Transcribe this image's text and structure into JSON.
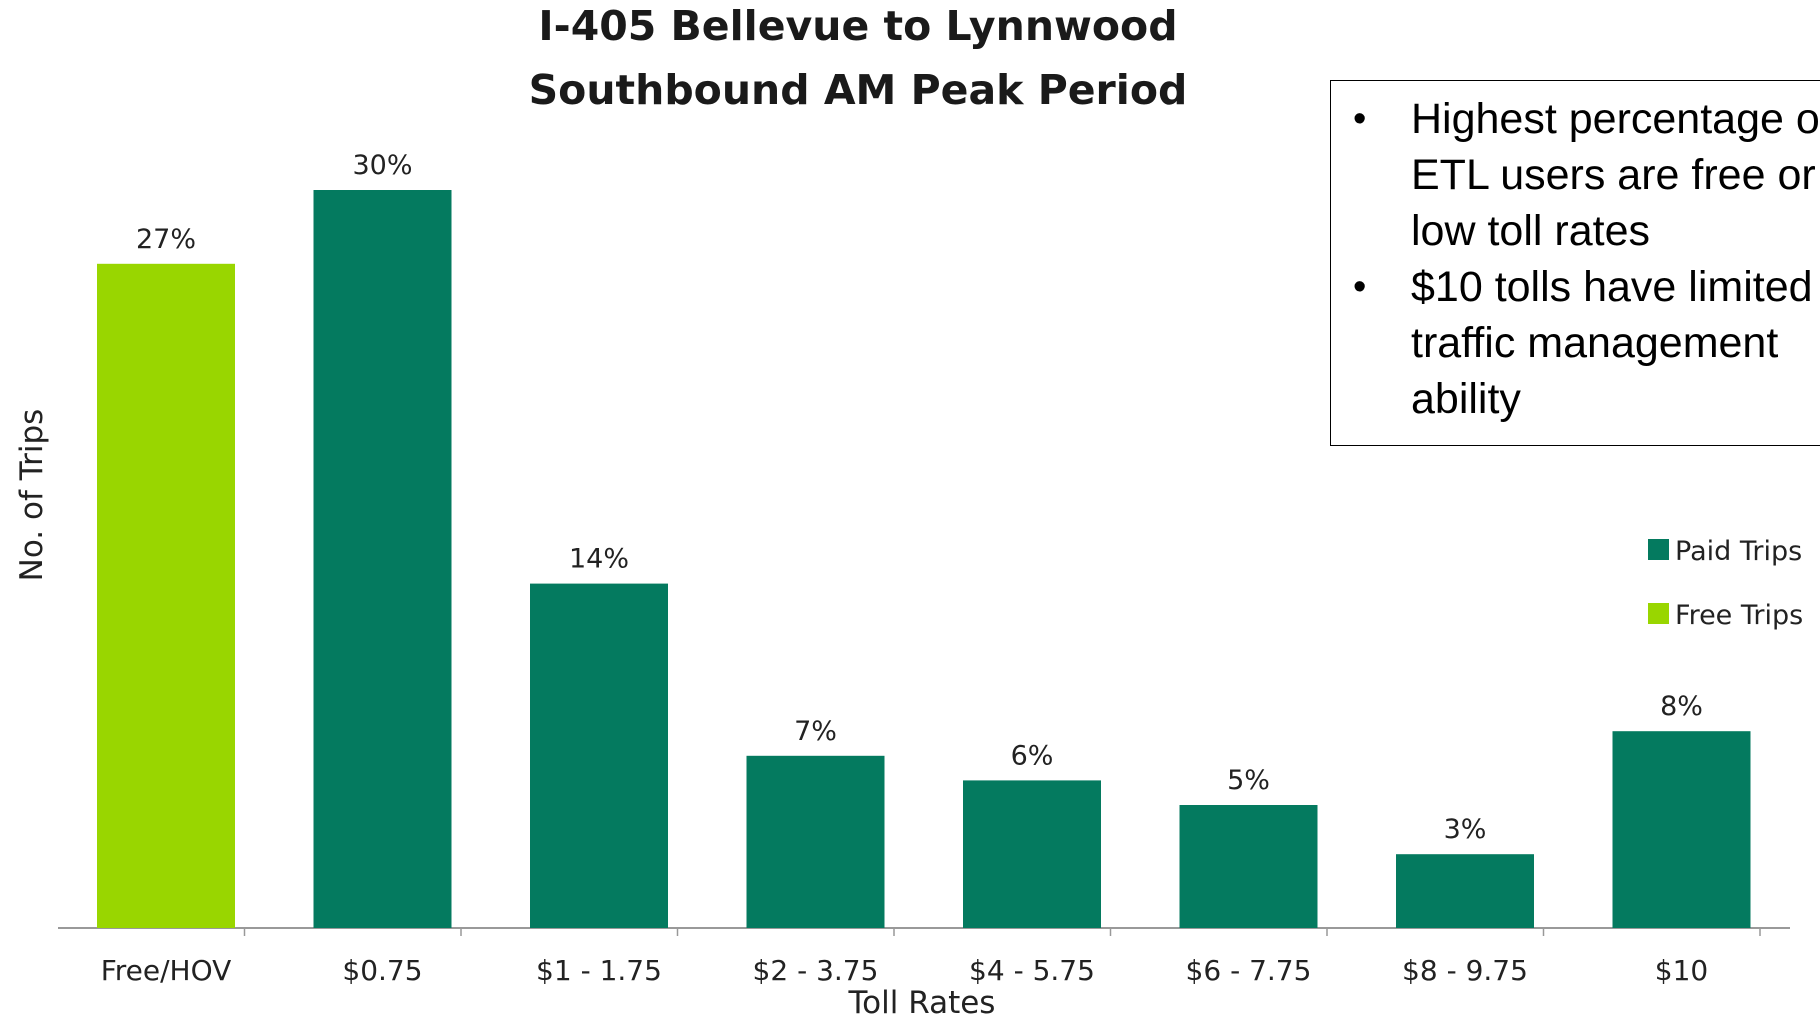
{
  "chart_data": {
    "type": "bar",
    "title": [
      "I-405 Bellevue to Lynnwood",
      "Southbound AM Peak Period"
    ],
    "xlabel": "Toll Rates",
    "ylabel": "No. of Trips",
    "categories": [
      "Free/HOV",
      "$0.75",
      "$1 - 1.75",
      "$2 - 3.75",
      "$4 - 5.75",
      "$6 - 7.75",
      "$8 - 9.75",
      "$10"
    ],
    "values": [
      27,
      30,
      14,
      7,
      6,
      5,
      3,
      8
    ],
    "value_labels": [
      "27%",
      "30%",
      "14%",
      "7%",
      "6%",
      "5%",
      "3%",
      "8%"
    ],
    "bar_series": [
      "Free Trips",
      "Paid Trips",
      "Paid Trips",
      "Paid Trips",
      "Paid Trips",
      "Paid Trips",
      "Paid Trips",
      "Paid Trips"
    ],
    "legend": [
      {
        "name": "Paid Trips",
        "color": "#047a5f"
      },
      {
        "name": "Free Trips",
        "color": "#99d600"
      }
    ],
    "legend_position": "right",
    "grid": false,
    "ylim": [
      0,
      30
    ]
  },
  "callout": {
    "bullets": [
      "Highest percentage of ETL users are free or low toll rates",
      "$10 tolls have limited traffic management ability"
    ]
  }
}
